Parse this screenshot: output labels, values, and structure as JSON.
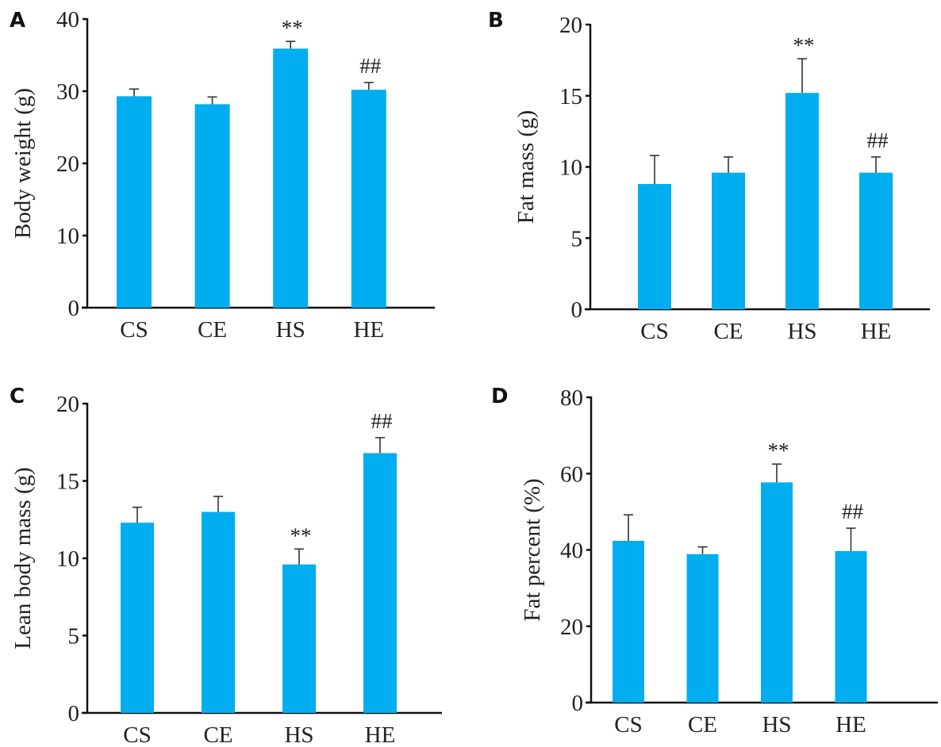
{
  "colors": {
    "bar": "#00AEEF",
    "axis": "#111111"
  },
  "chart_data": [
    {
      "type": "bar",
      "panel": "A",
      "categories": [
        "CS",
        "CE",
        "HS",
        "HE"
      ],
      "values": [
        29.3,
        28.2,
        35.9,
        30.2
      ],
      "errors": [
        1.0,
        1.0,
        1.0,
        1.0
      ],
      "annotations": [
        "",
        "",
        "**",
        "##"
      ],
      "ylabel": "Body weight (g)",
      "xlabel": "",
      "ylim": [
        0,
        40
      ],
      "yticks": [
        0,
        10,
        20,
        30,
        40
      ],
      "grid": false
    },
    {
      "type": "bar",
      "panel": "B",
      "categories": [
        "CS",
        "CE",
        "HS",
        "HE"
      ],
      "values": [
        8.8,
        9.6,
        15.2,
        9.6
      ],
      "errors": [
        2.0,
        1.1,
        2.4,
        1.1
      ],
      "annotations": [
        "",
        "",
        "**",
        "##"
      ],
      "ylabel": "Fat mass (g)",
      "xlabel": "",
      "ylim": [
        0,
        20
      ],
      "yticks": [
        0,
        5,
        10,
        15,
        20
      ],
      "grid": false
    },
    {
      "type": "bar",
      "panel": "C",
      "categories": [
        "CS",
        "CE",
        "HS",
        "HE"
      ],
      "values": [
        12.3,
        13.0,
        9.6,
        16.8
      ],
      "errors": [
        1.0,
        1.0,
        1.0,
        1.0
      ],
      "annotations": [
        "",
        "",
        "**",
        "##"
      ],
      "ylabel": "Lean body mass (g)",
      "xlabel": "",
      "ylim": [
        0,
        20
      ],
      "yticks": [
        0,
        5,
        10,
        15,
        20
      ],
      "grid": false
    },
    {
      "type": "bar",
      "panel": "D",
      "categories": [
        "CS",
        "CE",
        "HS",
        "HE"
      ],
      "values": [
        42.4,
        38.9,
        57.7,
        39.7
      ],
      "errors": [
        6.8,
        1.9,
        4.8,
        6.0
      ],
      "annotations": [
        "",
        "",
        "**",
        "##"
      ],
      "ylabel": "Fat percent (%)",
      "xlabel": "",
      "ylim": [
        0,
        80
      ],
      "yticks": [
        0,
        20,
        40,
        60,
        80
      ],
      "grid": false
    }
  ]
}
